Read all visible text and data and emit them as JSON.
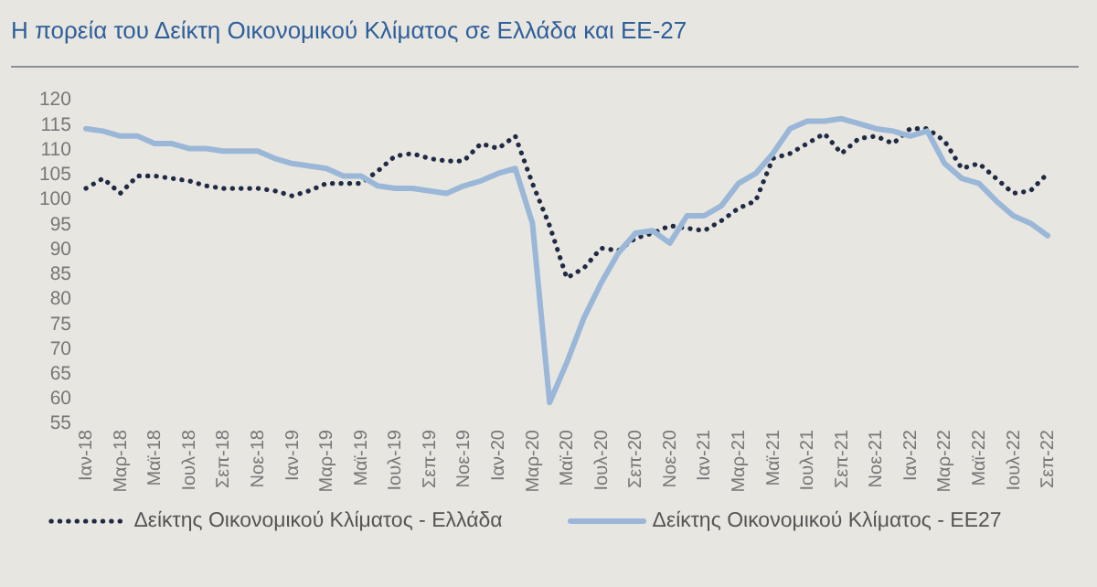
{
  "chart_data": {
    "type": "line",
    "title": "Η πορεία του Δείκτη Οικονομικού Κλίματος σε Ελλάδα και ΕΕ-27",
    "categories": [
      "Ιαν-18",
      null,
      "Μαρ-18",
      null,
      "Μαϊ-18",
      null,
      "Ιουλ-18",
      null,
      "Σεπ-18",
      null,
      "Νοε-18",
      null,
      "Ιαν-19",
      null,
      "Μαρ-19",
      null,
      "Μαϊ-19",
      null,
      "Ιουλ-19",
      null,
      "Σεπ-19",
      null,
      "Νοε-19",
      null,
      "Ιαν-20",
      null,
      "Μαρ-20",
      null,
      "Μαϊ-20",
      null,
      "Ιουλ-20",
      null,
      "Σεπ-20",
      null,
      "Νοε-20",
      null,
      "Ιαν-21",
      null,
      "Μαρ-21",
      null,
      "Μαϊ-21",
      null,
      "Ιουλ-21",
      null,
      "Σεπ-21",
      null,
      "Νοε-21",
      null,
      "Ιαν-22",
      null,
      "Μαρ-22",
      null,
      "Μαϊ-22",
      null,
      "Ιουλ-22",
      null,
      "Σεπ-22"
    ],
    "series": [
      {
        "name": "Δείκτης Οικονομικού Κλίματος - Ελλάδα",
        "color": "#1f2a44",
        "line_style": "dotted",
        "values": [
          102,
          104,
          101,
          104.5,
          104.5,
          104,
          103.5,
          102.5,
          102,
          102,
          102,
          101.5,
          100.5,
          101.5,
          103,
          103,
          103,
          105.5,
          108.5,
          109,
          108,
          107.5,
          107.5,
          111,
          110,
          112.5,
          103,
          94.5,
          84,
          86,
          90,
          89.5,
          92,
          93,
          94.5,
          94,
          93.5,
          95.5,
          98,
          99.5,
          108,
          109,
          111,
          113,
          109,
          112,
          112.5,
          111,
          114,
          114,
          111.5,
          106,
          107,
          104,
          101,
          101.5,
          105
        ]
      },
      {
        "name": "Δείκτης Οικονομικού Κλίματος - ΕΕ27",
        "color": "#9ab7d8",
        "line_style": "solid",
        "values": [
          114,
          113.5,
          112.5,
          112.5,
          111,
          111,
          110,
          110,
          109.5,
          109.5,
          109.5,
          108,
          107,
          106.5,
          106,
          104.5,
          104.5,
          102.5,
          102,
          102,
          101.5,
          101,
          102.5,
          103.5,
          105,
          106,
          95,
          59,
          67,
          76,
          83,
          89,
          93,
          93.5,
          91,
          96.5,
          96.5,
          98.5,
          103,
          105,
          109,
          114,
          115.5,
          115.5,
          116,
          115,
          114,
          113.5,
          112.5,
          113.5,
          107,
          104,
          103,
          99.5,
          96.5,
          95,
          92.5
        ]
      }
    ],
    "ylim": [
      55,
      120
    ],
    "yticks": [
      55,
      60,
      65,
      70,
      75,
      80,
      85,
      90,
      95,
      100,
      105,
      110,
      115,
      120
    ],
    "legend": "bottom"
  }
}
